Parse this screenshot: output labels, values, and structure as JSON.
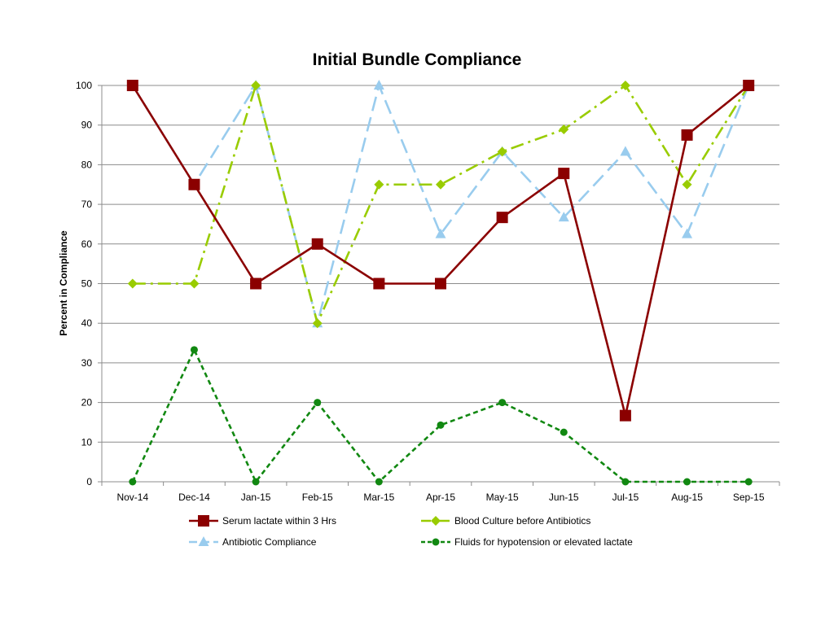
{
  "chart_data": {
    "type": "line",
    "title": "Initial Bundle Compliance",
    "xlabel": "",
    "ylabel": "Percent in Compliance",
    "ylim": [
      0,
      100
    ],
    "yticks": [
      0,
      10,
      20,
      30,
      40,
      50,
      60,
      70,
      80,
      90,
      100
    ],
    "grid": true,
    "legend_position": "bottom",
    "categories": [
      "Nov-14",
      "Dec-14",
      "Jan-15",
      "Feb-15",
      "Mar-15",
      "Apr-15",
      "May-15",
      "Jun-15",
      "Jul-15",
      "Aug-15",
      "Sep-15"
    ],
    "series": [
      {
        "name": "Serum lactate within 3 Hrs",
        "color": "#8b0000",
        "marker": "square",
        "line_style": "solid",
        "values": [
          100,
          75,
          50,
          60,
          50,
          50,
          66.7,
          77.8,
          16.7,
          87.5,
          100
        ]
      },
      {
        "name": "Blood Culture before Antibiotics",
        "color": "#99cc00",
        "marker": "diamond",
        "line_style": "dash-dot",
        "values": [
          50,
          50,
          100,
          40,
          75,
          75,
          83.3,
          88.9,
          100,
          75,
          100
        ]
      },
      {
        "name": "Antibiotic Compliance",
        "color": "#99ccee",
        "marker": "triangle",
        "line_style": "long-dash",
        "values": [
          100,
          75,
          100,
          40,
          100,
          62.5,
          83.3,
          66.7,
          83.3,
          62.5,
          100
        ]
      },
      {
        "name": "Fluids for hypotension or elevated lactate",
        "color": "#118811",
        "marker": "circle",
        "line_style": "short-dash",
        "values": [
          0,
          33.3,
          0,
          20,
          0,
          14.3,
          20,
          12.5,
          0,
          0,
          0
        ]
      }
    ]
  }
}
